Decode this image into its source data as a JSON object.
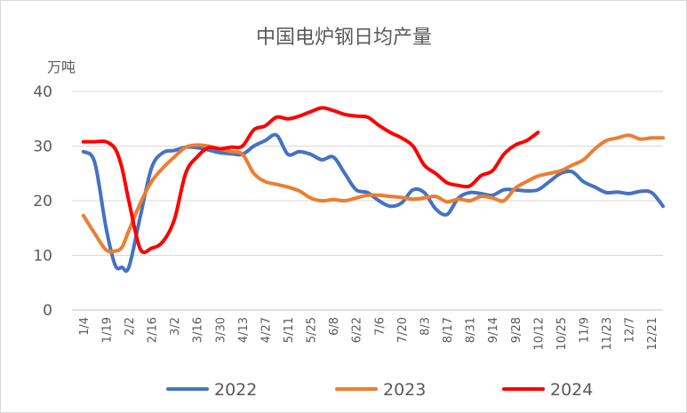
{
  "chart_data": {
    "type": "line",
    "title": "中国电炉钢日均产量",
    "ylabel": "万吨",
    "xlabel": "",
    "ylim": [
      0,
      40
    ],
    "yticks": [
      "0",
      "10",
      "20",
      "30",
      "40"
    ],
    "grid": true,
    "legend_position": "bottom",
    "categories": [
      "1/4",
      "1/19",
      "2/2",
      "2/16",
      "3/2",
      "3/16",
      "3/30",
      "4/13",
      "4/27",
      "5/11",
      "5/25",
      "6/8",
      "6/22",
      "7/6",
      "7/20",
      "8/3",
      "8/17",
      "8/31",
      "9/14",
      "9/28",
      "10/12",
      "10/25",
      "11/9",
      "11/23",
      "12/7",
      "12/21"
    ],
    "series": [
      {
        "name": "2022",
        "color": "#4472C4",
        "x": [
          0,
          0.5,
          1,
          1.4,
          1.7,
          2,
          2.5,
          3,
          3.5,
          4,
          4.5,
          5,
          5.5,
          6,
          6.5,
          7,
          7.5,
          8,
          8.5,
          9,
          9.5,
          10,
          10.5,
          11,
          11.5,
          12,
          12.5,
          13,
          13.5,
          14,
          14.5,
          15,
          15.5,
          16,
          16.5,
          17,
          17.5,
          18,
          18.5,
          19,
          19.5,
          20,
          20.5,
          21,
          21.5,
          22,
          22.5,
          23,
          23.5,
          24,
          24.5,
          25,
          25.5
        ],
        "values": [
          29,
          27,
          15,
          8.2,
          7.8,
          7.8,
          17,
          26,
          28.8,
          29.2,
          29.8,
          29.7,
          29.3,
          28.8,
          28.6,
          28.5,
          30,
          31,
          32,
          28.5,
          29,
          28.5,
          27.5,
          28,
          25,
          22,
          21.5,
          20,
          19,
          19.6,
          22,
          21.5,
          18.5,
          17.5,
          20.5,
          21.5,
          21.3,
          21,
          22,
          22,
          21.8,
          22,
          23.5,
          25,
          25.3,
          23.5,
          22.5,
          21.5,
          21.6,
          21.3,
          21.7,
          21.5,
          19
        ]
      },
      {
        "name": "2023",
        "color": "#ED7D31",
        "x": [
          0,
          0.5,
          1,
          1.4,
          1.7,
          2,
          2.5,
          3,
          3.5,
          4,
          4.5,
          5,
          5.5,
          6,
          6.5,
          7,
          7.5,
          8,
          8.5,
          9,
          9.5,
          10,
          10.5,
          11,
          11.5,
          12,
          12.5,
          13,
          13.5,
          14,
          14.5,
          15,
          15.5,
          16,
          16.5,
          17,
          17.5,
          18,
          18.5,
          19,
          19.5,
          20,
          20.5,
          21,
          21.5,
          22,
          22.5,
          23,
          23.5,
          24,
          24.5,
          25,
          25.5
        ],
        "values": [
          17.3,
          14,
          11,
          10.8,
          11.5,
          14.5,
          19.5,
          23.5,
          26,
          28,
          29.8,
          30.2,
          30,
          29.5,
          29,
          28.5,
          25,
          23.5,
          23,
          22.5,
          21.8,
          20.5,
          20,
          20.2,
          20,
          20.5,
          21,
          21,
          20.8,
          20.6,
          20.3,
          20.5,
          20.8,
          19.8,
          20.3,
          20,
          20.8,
          20.5,
          20,
          22.3,
          23.5,
          24.5,
          25,
          25.5,
          26.5,
          27.5,
          29.5,
          31,
          31.5,
          32,
          31.3,
          31.5,
          31.5
        ]
      },
      {
        "name": "2024",
        "color": "#FF0000",
        "x": [
          0,
          0.5,
          1,
          1.4,
          1.7,
          2,
          2.5,
          3,
          3.5,
          4,
          4.5,
          5,
          5.5,
          6,
          6.5,
          7,
          7.5,
          8,
          8.5,
          9,
          9.5,
          10,
          10.5,
          11,
          11.5,
          12,
          12.5,
          13,
          13.5,
          14,
          14.5,
          15,
          15.5,
          16,
          16.5,
          17,
          17.5,
          18,
          18.5,
          19,
          19.5,
          20
        ],
        "values": [
          30.8,
          30.8,
          30.8,
          29.5,
          26,
          20,
          11.2,
          11.3,
          12.5,
          16.5,
          25,
          28,
          29.7,
          29.5,
          29.8,
          30,
          33,
          33.7,
          35.3,
          35,
          35.5,
          36.3,
          37,
          36.5,
          35.8,
          35.5,
          35.3,
          33.8,
          32.5,
          31.5,
          30,
          26.5,
          25,
          23.3,
          22.8,
          22.7,
          24.6,
          25.5,
          28.5,
          30.2,
          31,
          32.5
        ]
      }
    ]
  }
}
